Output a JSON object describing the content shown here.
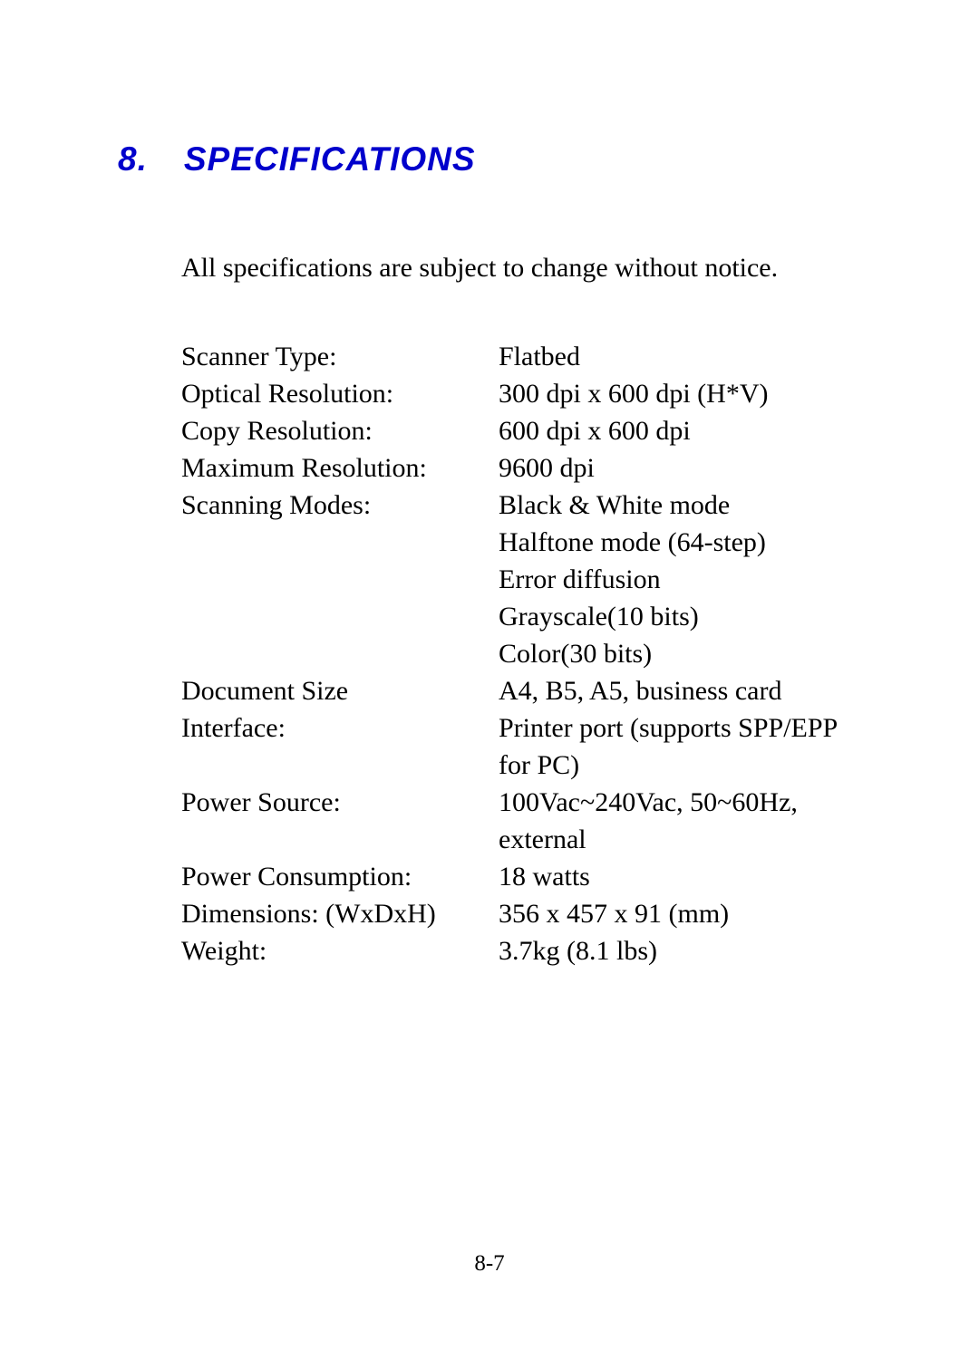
{
  "heading": {
    "number": "8.",
    "title": "SPECIFICATIONS",
    "color": "#0000cc",
    "fontsize": 37
  },
  "intro": "All specifications are subject to change without notice.",
  "specs": [
    {
      "label": "Scanner Type:",
      "values": [
        "Flatbed"
      ]
    },
    {
      "label": "Optical Resolution:",
      "values": [
        "300 dpi x 600 dpi (H*V)"
      ]
    },
    {
      "label": "Copy Resolution:",
      "values": [
        "600 dpi x 600 dpi"
      ]
    },
    {
      "label": "Maximum Resolution:",
      "values": [
        "9600 dpi"
      ]
    },
    {
      "label": "Scanning Modes:",
      "values": [
        "Black & White mode",
        "Halftone mode (64-step)",
        "Error diffusion",
        "Grayscale(10 bits)",
        "Color(30 bits)"
      ]
    },
    {
      "label": "Document Size",
      "values": [
        "A4, B5, A5, business card"
      ]
    },
    {
      "label": "Interface:",
      "values": [
        "Printer port (supports SPP/EPP for PC)"
      ]
    },
    {
      "label": "Power Source:",
      "values": [
        "100Vac~240Vac, 50~60Hz, external"
      ]
    },
    {
      "label": "Power Consumption:",
      "values": [
        "18 watts"
      ]
    },
    {
      "label": "Dimensions: (WxDxH)",
      "values": [
        "356 x 457 x 91 (mm)"
      ]
    },
    {
      "label": "Weight:",
      "values": [
        "3.7kg (8.1 lbs)"
      ]
    }
  ],
  "page_number": "8-7",
  "styling": {
    "body_font": "Times New Roman",
    "heading_font": "Arial",
    "body_fontsize": 30,
    "body_color": "#000000",
    "background_color": "#ffffff",
    "label_column_width": 350,
    "line_height": 41
  }
}
